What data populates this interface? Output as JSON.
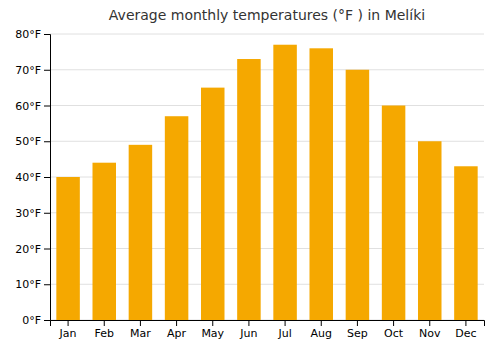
{
  "chart_data": {
    "type": "bar",
    "title": "Average monthly temperatures (°F ) in Melíki",
    "categories": [
      "Jan",
      "Feb",
      "Mar",
      "Apr",
      "May",
      "Jun",
      "Jul",
      "Aug",
      "Sep",
      "Oct",
      "Nov",
      "Dec"
    ],
    "values": [
      40,
      44,
      49,
      57,
      65,
      73,
      77,
      76,
      70,
      60,
      50,
      43
    ],
    "color": "#F5A800",
    "ylim": [
      0,
      80
    ],
    "yticks": [
      {
        "value": 0,
        "label": "0°F"
      },
      {
        "value": 10,
        "label": "10°F"
      },
      {
        "value": 20,
        "label": "20°F"
      },
      {
        "value": 30,
        "label": "30°F"
      },
      {
        "value": 40,
        "label": "40°F"
      },
      {
        "value": 50,
        "label": "50°F"
      },
      {
        "value": 60,
        "label": "60°F"
      },
      {
        "value": 70,
        "label": "70°F"
      },
      {
        "value": 80,
        "label": "80°F"
      }
    ],
    "grid": true
  }
}
